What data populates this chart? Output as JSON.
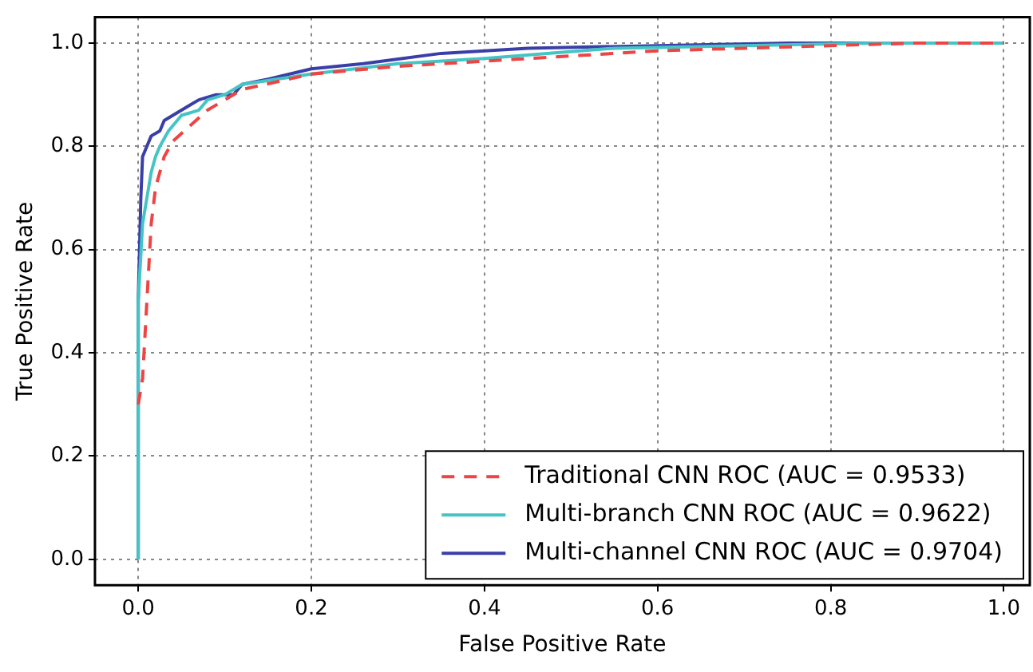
{
  "chart_data": {
    "type": "line",
    "xlabel": "False Positive Rate",
    "ylabel": "True Positive Rate",
    "xlim": [
      -0.05,
      1.03
    ],
    "ylim": [
      -0.05,
      1.05
    ],
    "xticks": [
      {
        "value": 0,
        "label": "0.0"
      },
      0.2,
      0.4,
      0.6,
      0.8,
      {
        "value": 1,
        "label": "1.0"
      }
    ],
    "yticks": [
      {
        "value": 0,
        "label": "0.0"
      },
      0.2,
      0.4,
      0.6,
      0.8,
      {
        "value": 1,
        "label": "1.0"
      }
    ],
    "grid": true,
    "legend": "bottom right",
    "series": [
      {
        "name": "Traditional CNN ROC (AUC = 0.9533)",
        "color": "#ee4444",
        "line_style": "dashed",
        "x": [
          0,
          0.005,
          0.01,
          0.015,
          0.02,
          0.03,
          0.04,
          0.06,
          0.08,
          0.1,
          0.12,
          0.2,
          0.3,
          0.4,
          0.5,
          0.6,
          0.7,
          0.8,
          0.9,
          1
        ],
        "values": [
          0.3,
          0.35,
          0.5,
          0.65,
          0.72,
          0.78,
          0.81,
          0.84,
          0.87,
          0.89,
          0.91,
          0.94,
          0.955,
          0.965,
          0.975,
          0.985,
          0.99,
          0.995,
          1.0,
          1.0
        ]
      },
      {
        "name": "Multi-branch CNN ROC (AUC = 0.9622)",
        "color": "#44c4c4",
        "line_style": "solid",
        "x": [
          0,
          0,
          0.005,
          0.01,
          0.015,
          0.02,
          0.025,
          0.035,
          0.05,
          0.07,
          0.08,
          0.1,
          0.12,
          0.2,
          0.3,
          0.4,
          0.55,
          0.7,
          0.85,
          1
        ],
        "values": [
          0,
          0.5,
          0.65,
          0.7,
          0.75,
          0.78,
          0.8,
          0.83,
          0.86,
          0.87,
          0.89,
          0.9,
          0.92,
          0.94,
          0.96,
          0.97,
          0.99,
          0.995,
          1.0,
          1.0
        ]
      },
      {
        "name": "Multi-channel CNN ROC (AUC = 0.9704)",
        "color": "#3a3fa8",
        "line_style": "solid",
        "x": [
          0,
          0,
          0.003,
          0.005,
          0.01,
          0.015,
          0.025,
          0.03,
          0.04,
          0.05,
          0.06,
          0.07,
          0.09,
          0.11,
          0.12,
          0.15,
          0.2,
          0.26,
          0.35,
          0.45,
          0.6,
          0.75,
          1
        ],
        "values": [
          0,
          0.5,
          0.7,
          0.78,
          0.8,
          0.82,
          0.83,
          0.85,
          0.86,
          0.87,
          0.88,
          0.89,
          0.9,
          0.9,
          0.92,
          0.93,
          0.95,
          0.96,
          0.98,
          0.99,
          0.995,
          1.0,
          1.0
        ]
      }
    ]
  }
}
